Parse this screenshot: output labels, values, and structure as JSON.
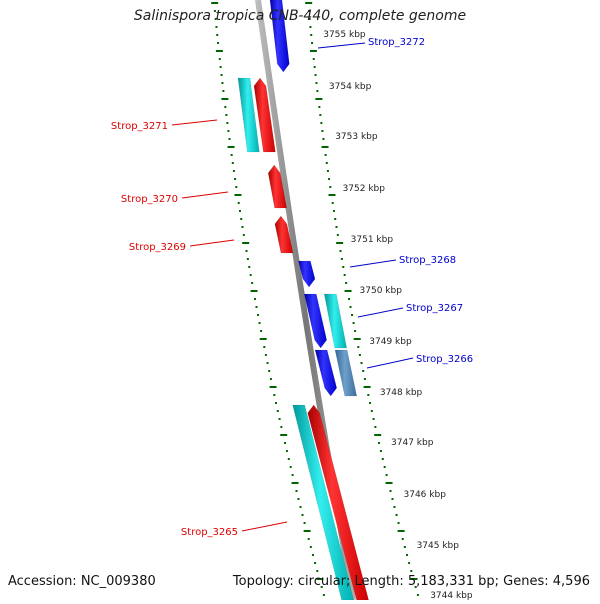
{
  "title": "Salinispora tropica CNB-440, complete genome",
  "footer": {
    "accession": "Accession: NC_009380",
    "summary": "Topology: circular; Length: 5,183,331 bp; Genes: 4,596"
  },
  "scale_labels": [
    "3755 kbp",
    "3754 kbp",
    "3753 kbp",
    "3752 kbp",
    "3751 kbp",
    "3750 kbp",
    "3749 kbp",
    "3748 kbp",
    "3747 kbp",
    "3746 kbp",
    "3745 kbp",
    "3744 kbp"
  ],
  "genes": [
    {
      "label": "Strop_3272",
      "strand": "reverse",
      "color": "#0000ff"
    },
    {
      "label": "Strop_3271",
      "strand": "forward",
      "color": "#ff0000",
      "paired_color": "#00cccc"
    },
    {
      "label": "Strop_3270",
      "strand": "forward",
      "color": "#ff0000"
    },
    {
      "label": "Strop_3269",
      "strand": "forward",
      "color": "#ff0000"
    },
    {
      "label": "Strop_3268",
      "strand": "reverse",
      "color": "#0000ff"
    },
    {
      "label": "Strop_3267",
      "strand": "reverse",
      "color": "#0000ff",
      "paired_color": "#00cccc"
    },
    {
      "label": "Strop_3266",
      "strand": "reverse",
      "color": "#0000ff",
      "paired_color": "#4682b4"
    },
    {
      "label": "Strop_3265",
      "strand": "forward",
      "color": "#ff0000",
      "paired_color": "#00cccc"
    }
  ],
  "colors": {
    "forward_label": "#dd0000",
    "reverse_label": "#0000cc",
    "scale_ticks": "#006600",
    "backbone": "#888888"
  }
}
